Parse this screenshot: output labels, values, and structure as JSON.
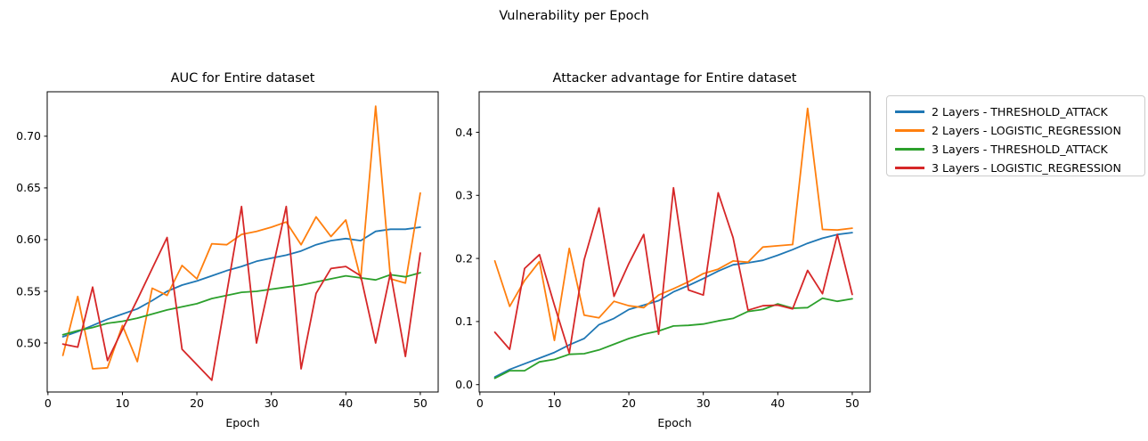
{
  "figure": {
    "suptitle": "Vulnerability per Epoch"
  },
  "legend": {
    "items": [
      {
        "label": "2 Layers - THRESHOLD_ATTACK",
        "color": "#1f77b4"
      },
      {
        "label": "2 Layers - LOGISTIC_REGRESSION",
        "color": "#ff7f0e"
      },
      {
        "label": "3 Layers - THRESHOLD_ATTACK",
        "color": "#2ca02c"
      },
      {
        "label": "3 Layers - LOGISTIC_REGRESSION",
        "color": "#d62728"
      }
    ],
    "position": "outside-right"
  },
  "chart_data": [
    {
      "type": "line",
      "title": "AUC for Entire dataset",
      "xlabel": "Epoch",
      "grid": false,
      "x": [
        2,
        4,
        6,
        8,
        10,
        12,
        14,
        16,
        18,
        20,
        22,
        24,
        26,
        28,
        30,
        32,
        34,
        36,
        38,
        40,
        42,
        44,
        46,
        48,
        50
      ],
      "xticks": [
        0,
        10,
        20,
        30,
        40,
        50
      ],
      "xlim": [
        -0.1,
        52.4
      ],
      "ylim": [
        0.4526,
        0.743
      ],
      "ytick_values": [
        0.5,
        0.55,
        0.6,
        0.65,
        0.7
      ],
      "ytick_labels": [
        "0.50",
        "0.55",
        "0.60",
        "0.65",
        "0.70"
      ],
      "series": [
        {
          "name": "2 Layers - THRESHOLD_ATTACK",
          "color": "#1f77b4",
          "values": [
            0.506,
            0.511,
            0.517,
            0.523,
            0.528,
            0.533,
            0.541,
            0.55,
            0.556,
            0.56,
            0.565,
            0.57,
            0.574,
            0.579,
            0.582,
            0.585,
            0.589,
            0.595,
            0.599,
            0.601,
            0.599,
            0.608,
            0.61,
            0.61,
            0.612
          ]
        },
        {
          "name": "2 Layers - LOGISTIC_REGRESSION",
          "color": "#ff7f0e",
          "values": [
            0.488,
            0.545,
            0.475,
            0.476,
            0.517,
            0.482,
            0.553,
            0.546,
            0.575,
            0.562,
            0.596,
            0.595,
            0.605,
            0.608,
            0.612,
            0.617,
            0.595,
            0.622,
            0.603,
            0.619,
            0.562,
            0.729,
            0.562,
            0.558,
            0.645
          ]
        },
        {
          "name": "3 Layers - THRESHOLD_ATTACK",
          "color": "#2ca02c",
          "values": [
            0.508,
            0.512,
            0.515,
            0.519,
            0.521,
            0.524,
            0.528,
            0.532,
            0.535,
            0.538,
            0.543,
            0.546,
            0.549,
            0.55,
            0.552,
            0.554,
            0.556,
            0.559,
            0.562,
            0.565,
            0.563,
            0.561,
            0.566,
            0.564,
            0.568
          ]
        },
        {
          "name": "3 Layers - LOGISTIC_REGRESSION",
          "color": "#d62728",
          "values": [
            0.499,
            0.496,
            0.554,
            0.483,
            0.513,
            0.542,
            0.572,
            0.602,
            0.494,
            0.479,
            0.464,
            0.548,
            0.632,
            0.5,
            0.566,
            0.632,
            0.475,
            0.548,
            0.572,
            0.574,
            0.565,
            0.5,
            0.568,
            0.487,
            0.587
          ]
        }
      ]
    },
    {
      "type": "line",
      "title": "Attacker advantage for Entire dataset",
      "xlabel": "Epoch",
      "grid": false,
      "x": [
        2,
        4,
        6,
        8,
        10,
        12,
        14,
        16,
        18,
        20,
        22,
        24,
        26,
        28,
        30,
        32,
        34,
        36,
        38,
        40,
        42,
        44,
        46,
        48,
        50
      ],
      "xticks": [
        0,
        10,
        20,
        30,
        40,
        50
      ],
      "xlim": [
        -0.1,
        52.4
      ],
      "ylim": [
        -0.0117,
        0.4642
      ],
      "ytick_values": [
        0.0,
        0.1,
        0.2,
        0.3,
        0.4
      ],
      "ytick_labels": [
        "0.0",
        "0.1",
        "0.2",
        "0.3",
        "0.4"
      ],
      "series": [
        {
          "name": "2 Layers - THRESHOLD_ATTACK",
          "color": "#1f77b4",
          "values": [
            0.012,
            0.024,
            0.033,
            0.042,
            0.051,
            0.063,
            0.073,
            0.095,
            0.105,
            0.119,
            0.126,
            0.133,
            0.147,
            0.157,
            0.168,
            0.18,
            0.19,
            0.193,
            0.197,
            0.205,
            0.214,
            0.224,
            0.232,
            0.238,
            0.241
          ]
        },
        {
          "name": "2 Layers - LOGISTIC_REGRESSION",
          "color": "#ff7f0e",
          "values": [
            0.196,
            0.124,
            0.165,
            0.195,
            0.07,
            0.216,
            0.11,
            0.106,
            0.132,
            0.125,
            0.122,
            0.142,
            0.152,
            0.163,
            0.176,
            0.183,
            0.196,
            0.194,
            0.218,
            0.22,
            0.222,
            0.438,
            0.246,
            0.245,
            0.248
          ]
        },
        {
          "name": "3 Layers - THRESHOLD_ATTACK",
          "color": "#2ca02c",
          "values": [
            0.01,
            0.022,
            0.022,
            0.036,
            0.04,
            0.048,
            0.049,
            0.055,
            0.064,
            0.073,
            0.08,
            0.085,
            0.093,
            0.094,
            0.096,
            0.101,
            0.105,
            0.116,
            0.119,
            0.128,
            0.121,
            0.122,
            0.137,
            0.132,
            0.136
          ]
        },
        {
          "name": "3 Layers - LOGISTIC_REGRESSION",
          "color": "#d62728",
          "values": [
            0.083,
            0.056,
            0.184,
            0.206,
            0.126,
            0.05,
            0.198,
            0.28,
            0.14,
            0.192,
            0.238,
            0.08,
            0.312,
            0.15,
            0.142,
            0.304,
            0.233,
            0.118,
            0.125,
            0.126,
            0.12,
            0.181,
            0.144,
            0.238,
            0.143
          ]
        }
      ]
    }
  ]
}
